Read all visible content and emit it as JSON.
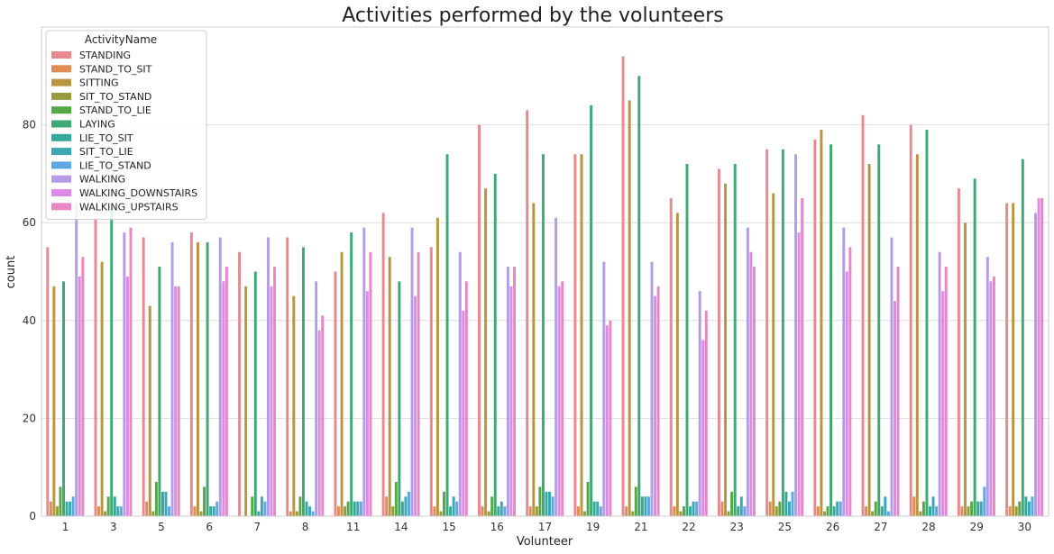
{
  "chart_data": {
    "type": "bar",
    "title": "Activities performed by the volunteers",
    "xlabel": "Volunteer",
    "ylabel": "count",
    "ylim": [
      0,
      100
    ],
    "yticks": [
      0,
      20,
      40,
      60,
      80
    ],
    "grid": "horizontal",
    "legend": {
      "title": "ActivityName",
      "placement": "top-left"
    },
    "categories": [
      "1",
      "3",
      "5",
      "6",
      "7",
      "8",
      "11",
      "14",
      "15",
      "16",
      "17",
      "19",
      "21",
      "22",
      "23",
      "25",
      "26",
      "27",
      "28",
      "29",
      "30"
    ],
    "series": [
      {
        "name": "STANDING",
        "color": "#e8888f",
        "values": [
          55,
          61,
          57,
          58,
          54,
          57,
          50,
          62,
          55,
          80,
          83,
          74,
          94,
          65,
          71,
          75,
          77,
          82,
          80,
          67,
          64
        ]
      },
      {
        "name": "STAND_TO_SIT",
        "color": "#e08d55",
        "values": [
          3,
          2,
          3,
          2,
          0,
          1,
          2,
          4,
          2,
          2,
          2,
          2,
          2,
          2,
          3,
          3,
          2,
          2,
          4,
          2,
          2
        ]
      },
      {
        "name": "SITTING",
        "color": "#b8953f",
        "values": [
          47,
          52,
          43,
          56,
          47,
          45,
          54,
          53,
          61,
          67,
          64,
          74,
          85,
          62,
          68,
          66,
          79,
          72,
          74,
          60,
          64
        ]
      },
      {
        "name": "SIT_TO_STAND",
        "color": "#989a3c",
        "values": [
          2,
          1,
          1,
          1,
          0,
          1,
          2,
          2,
          1,
          1,
          2,
          1,
          1,
          1,
          1,
          2,
          1,
          1,
          1,
          2,
          2
        ]
      },
      {
        "name": "STAND_TO_LIE",
        "color": "#56a845",
        "values": [
          6,
          4,
          7,
          6,
          4,
          4,
          3,
          7,
          5,
          4,
          6,
          7,
          6,
          2,
          5,
          3,
          2,
          3,
          3,
          3,
          3
        ]
      },
      {
        "name": "LAYING",
        "color": "#3daa76",
        "values": [
          48,
          63,
          51,
          56,
          50,
          55,
          58,
          48,
          74,
          70,
          74,
          84,
          90,
          72,
          72,
          75,
          76,
          76,
          79,
          69,
          73
        ]
      },
      {
        "name": "LIE_TO_SIT",
        "color": "#35a89a",
        "values": [
          3,
          4,
          5,
          2,
          1,
          3,
          3,
          3,
          2,
          2,
          5,
          3,
          4,
          2,
          2,
          5,
          2,
          2,
          2,
          3,
          4
        ]
      },
      {
        "name": "SIT_TO_LIE",
        "color": "#39a7b6",
        "values": [
          3,
          2,
          5,
          2,
          4,
          2,
          3,
          4,
          4,
          3,
          5,
          3,
          4,
          3,
          4,
          3,
          3,
          4,
          4,
          3,
          3
        ]
      },
      {
        "name": "LIE_TO_STAND",
        "color": "#5ea7e0",
        "values": [
          4,
          2,
          2,
          3,
          3,
          1,
          3,
          5,
          3,
          2,
          4,
          2,
          4,
          3,
          2,
          5,
          3,
          1,
          2,
          6,
          4
        ]
      },
      {
        "name": "WALKING",
        "color": "#b49ce8",
        "values": [
          64,
          58,
          56,
          57,
          57,
          48,
          59,
          59,
          54,
          51,
          61,
          52,
          52,
          46,
          59,
          74,
          59,
          57,
          54,
          53,
          62
        ]
      },
      {
        "name": "WALKING_DOWNSTAIRS",
        "color": "#de8be6",
        "values": [
          49,
          49,
          47,
          48,
          47,
          38,
          46,
          45,
          42,
          47,
          47,
          39,
          45,
          36,
          54,
          58,
          50,
          44,
          46,
          48,
          65
        ]
      },
      {
        "name": "WALKING_UPSTAIRS",
        "color": "#e886c6",
        "values": [
          53,
          59,
          47,
          51,
          51,
          41,
          54,
          54,
          48,
          51,
          48,
          40,
          47,
          42,
          51,
          65,
          55,
          51,
          51,
          49,
          65
        ]
      }
    ]
  }
}
